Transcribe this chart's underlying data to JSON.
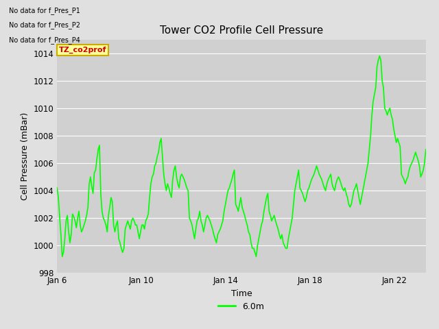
{
  "title": "Tower CO2 Profile Cell Pressure",
  "xlabel": "Time",
  "ylabel": "Cell Pressure (mBar)",
  "ylim": [
    998,
    1015
  ],
  "yticks": [
    998,
    1000,
    1002,
    1004,
    1006,
    1008,
    1010,
    1012,
    1014
  ],
  "xtick_labels": [
    "Jan 6",
    "Jan 10",
    "Jan 14",
    "Jan 18",
    "Jan 22"
  ],
  "xtick_positions": [
    0,
    4,
    8,
    12,
    16
  ],
  "line_color": "#00ff00",
  "line_width": 1.2,
  "bg_color": "#e0e0e0",
  "plot_bg_color": "#d0d0d0",
  "legend_label": "6.0m",
  "annotations": [
    "No data for f_Pres_P1",
    "No data for f_Pres_P2",
    "No data for f_Pres_P4"
  ],
  "tooltip_text": "TZ_co2prof",
  "tooltip_bg": "#ffff99",
  "tooltip_border": "#ccaa00",
  "title_fontsize": 11,
  "axis_fontsize": 9,
  "tick_fontsize": 8.5,
  "y_values": [
    1004.2,
    1003.5,
    1002.1,
    1000.8,
    999.2,
    999.5,
    1000.5,
    1001.8,
    1002.2,
    1001.0,
    1000.2,
    1000.8,
    1002.3,
    1002.1,
    1001.8,
    1001.3,
    1002.0,
    1002.5,
    1001.5,
    1001.0,
    1001.2,
    1001.5,
    1001.8,
    1002.2,
    1002.8,
    1004.5,
    1005.0,
    1004.3,
    1003.8,
    1005.3,
    1005.5,
    1006.3,
    1007.0,
    1007.3,
    1003.8,
    1002.5,
    1002.0,
    1001.8,
    1001.5,
    1001.0,
    1002.2,
    1002.8,
    1003.5,
    1003.2,
    1001.5,
    1001.0,
    1001.5,
    1001.8,
    1000.5,
    1000.2,
    999.8,
    999.5,
    999.8,
    1001.2,
    1001.5,
    1001.8,
    1001.5,
    1001.2,
    1001.8,
    1002.0,
    1001.8,
    1001.5,
    1001.5,
    1001.0,
    1000.5,
    1001.0,
    1001.5,
    1001.5,
    1001.2,
    1001.8,
    1002.0,
    1002.3,
    1003.5,
    1004.5,
    1005.0,
    1005.2,
    1005.8,
    1006.0,
    1006.5,
    1006.8,
    1007.5,
    1007.8,
    1006.5,
    1005.2,
    1004.5,
    1004.0,
    1004.5,
    1004.2,
    1003.8,
    1003.5,
    1004.8,
    1005.5,
    1005.8,
    1005.0,
    1004.5,
    1004.2,
    1005.0,
    1005.2,
    1005.0,
    1004.8,
    1004.5,
    1004.2,
    1004.0,
    1002.0,
    1001.8,
    1001.5,
    1001.0,
    1000.5,
    1001.2,
    1001.8,
    1002.0,
    1002.5,
    1001.8,
    1001.5,
    1001.0,
    1001.5,
    1002.0,
    1002.2,
    1002.0,
    1001.8,
    1001.5,
    1001.2,
    1000.8,
    1000.5,
    1000.2,
    1000.8,
    1001.0,
    1001.2,
    1001.5,
    1001.8,
    1002.5,
    1003.0,
    1003.5,
    1004.0,
    1004.2,
    1004.5,
    1004.8,
    1005.2,
    1005.5,
    1003.0,
    1002.8,
    1002.5,
    1003.0,
    1003.5,
    1002.8,
    1002.5,
    1002.2,
    1001.8,
    1001.5,
    1001.0,
    1000.8,
    1000.2,
    999.8,
    999.8,
    999.5,
    999.2,
    1000.0,
    1000.5,
    1001.0,
    1001.5,
    1001.8,
    1002.5,
    1003.0,
    1003.5,
    1003.8,
    1002.5,
    1002.2,
    1001.8,
    1002.0,
    1002.2,
    1001.8,
    1001.5,
    1001.2,
    1000.8,
    1000.5,
    1000.8,
    1000.2,
    1000.0,
    999.8,
    999.8,
    1000.5,
    1001.0,
    1001.5,
    1002.0,
    1003.0,
    1004.0,
    1004.5,
    1005.0,
    1005.5,
    1004.2,
    1004.0,
    1003.8,
    1003.5,
    1003.2,
    1003.5,
    1004.0,
    1004.2,
    1004.5,
    1004.8,
    1005.0,
    1005.2,
    1005.5,
    1005.8,
    1005.5,
    1005.2,
    1005.0,
    1004.8,
    1004.5,
    1004.2,
    1004.0,
    1004.5,
    1004.8,
    1005.0,
    1005.2,
    1004.5,
    1004.2,
    1004.0,
    1004.5,
    1004.8,
    1005.0,
    1004.8,
    1004.5,
    1004.2,
    1004.0,
    1004.2,
    1003.8,
    1003.5,
    1003.0,
    1002.8,
    1003.0,
    1003.5,
    1004.0,
    1004.2,
    1004.5,
    1004.0,
    1003.5,
    1003.0,
    1003.5,
    1004.0,
    1004.5,
    1005.0,
    1005.5,
    1006.0,
    1007.0,
    1008.0,
    1009.5,
    1010.5,
    1011.0,
    1011.5,
    1013.0,
    1013.5,
    1013.8,
    1013.5,
    1012.0,
    1011.5,
    1010.0,
    1009.8,
    1009.5,
    1009.8,
    1010.0,
    1009.5,
    1009.2,
    1008.5,
    1008.0,
    1007.5,
    1007.8,
    1007.5,
    1007.2,
    1005.2,
    1005.0,
    1004.8,
    1004.5,
    1004.8,
    1005.0,
    1005.5,
    1005.8,
    1006.0,
    1006.2,
    1006.5,
    1006.8,
    1006.5,
    1006.2,
    1005.8,
    1005.0,
    1005.2,
    1005.5,
    1006.0,
    1007.0
  ]
}
